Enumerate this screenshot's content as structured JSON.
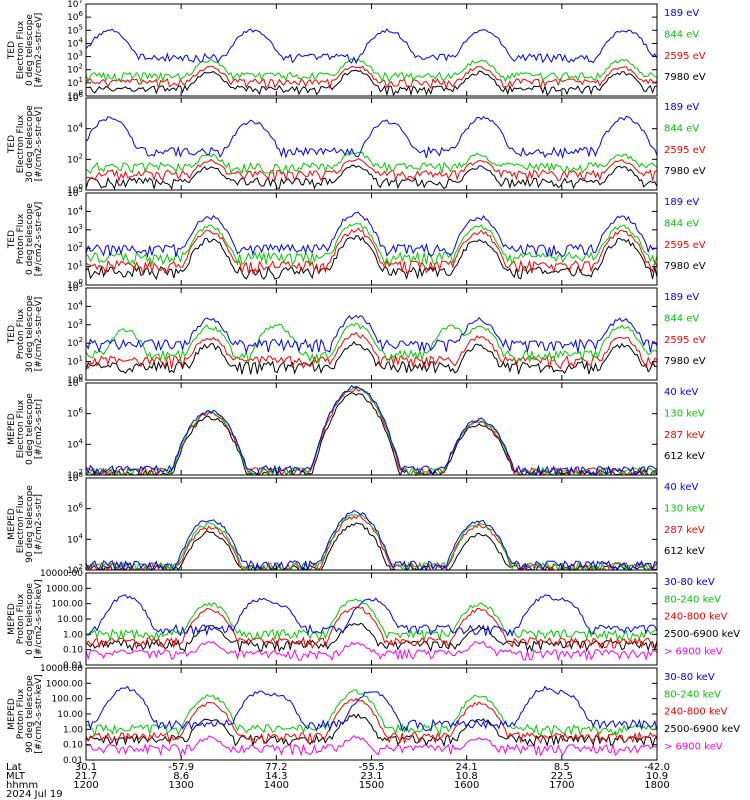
{
  "colors": {
    "blue": "#0000ff",
    "red": "#ff0000",
    "green": "#00cc00",
    "black": "#000000",
    "magenta": "#ff00ff"
  },
  "x_axis": {
    "row_labels": [
      "Lat",
      "MLT",
      "hhmm"
    ],
    "date_label": "2024 Jul 19",
    "ticks": [
      {
        "lat": "30.1",
        "mlt": "21.7",
        "hhmm": "1200"
      },
      {
        "lat": "-57.9",
        "mlt": "8.6",
        "hhmm": "1300"
      },
      {
        "lat": "77.2",
        "mlt": "14.3",
        "hhmm": "1400"
      },
      {
        "lat": "-55.5",
        "mlt": "23.1",
        "hhmm": "1500"
      },
      {
        "lat": "24.1",
        "mlt": "10.8",
        "hhmm": "1600"
      },
      {
        "lat": "8.5",
        "mlt": "22.5",
        "hhmm": "1700"
      },
      {
        "lat": "-42.0",
        "mlt": "10.9",
        "hhmm": "1800"
      }
    ]
  },
  "chart_data": [
    {
      "type": "line",
      "ylabel": [
        "TED",
        "Electron Flux",
        "0 deg telescope",
        "[#/cm2-s-str-eV]"
      ],
      "yscale": "log",
      "ylim": [
        1,
        10000000
      ],
      "yticks": [
        "10^0",
        "10^1",
        "10^2",
        "10^3",
        "10^4",
        "10^5",
        "10^6",
        "10^7"
      ],
      "x_range": [
        "1200",
        "1800"
      ],
      "series": [
        {
          "name": "7980 eV",
          "color": "black",
          "baseline": 3,
          "peaks": [
            [
              1318,
              60
            ],
            [
              1450,
              80
            ],
            [
              1608,
              60
            ],
            [
              1738,
              60
            ]
          ]
        },
        {
          "name": "2595 eV",
          "color": "red",
          "baseline": 10,
          "peaks": [
            [
              1318,
              150
            ],
            [
              1450,
              200
            ],
            [
              1608,
              150
            ],
            [
              1738,
              150
            ]
          ]
        },
        {
          "name": "844 eV",
          "color": "green",
          "baseline": 30,
          "peaks": [
            [
              1318,
              500
            ],
            [
              1450,
              600
            ],
            [
              1608,
              500
            ],
            [
              1738,
              500
            ]
          ]
        },
        {
          "name": "189 eV",
          "color": "blue",
          "baseline": 800,
          "peaks": [
            [
              1215,
              100000
            ],
            [
              1345,
              100000
            ],
            [
              1470,
              100000
            ],
            [
              1610,
              100000
            ],
            [
              1740,
              100000
            ]
          ]
        }
      ]
    },
    {
      "type": "line",
      "ylabel": [
        "TED",
        "Electron Flux",
        "30 deg telescope",
        "[#/cm2-s-str-eV]"
      ],
      "yscale": "log",
      "ylim": [
        1,
        1000000
      ],
      "yticks": [
        "10^0",
        "10^2",
        "10^4",
        "10^6"
      ],
      "x_range": [
        "1200",
        "1800"
      ],
      "series": [
        {
          "name": "7980 eV",
          "color": "black",
          "baseline": 3,
          "peaks": [
            [
              1318,
              30
            ],
            [
              1450,
              40
            ],
            [
              1608,
              30
            ],
            [
              1738,
              30
            ]
          ]
        },
        {
          "name": "2595 eV",
          "color": "red",
          "baseline": 10,
          "peaks": [
            [
              1318,
              80
            ],
            [
              1450,
              100
            ],
            [
              1608,
              80
            ],
            [
              1738,
              80
            ]
          ]
        },
        {
          "name": "844 eV",
          "color": "green",
          "baseline": 30,
          "peaks": [
            [
              1318,
              200
            ],
            [
              1450,
              300
            ],
            [
              1608,
              200
            ],
            [
              1738,
              200
            ]
          ]
        },
        {
          "name": "189 eV",
          "color": "blue",
          "baseline": 300,
          "peaks": [
            [
              1215,
              50000
            ],
            [
              1345,
              30000
            ],
            [
              1470,
              30000
            ],
            [
              1610,
              50000
            ],
            [
              1740,
              50000
            ]
          ]
        }
      ]
    },
    {
      "type": "line",
      "ylabel": [
        "TED",
        "Proton Flux",
        "0 deg telescope",
        "[#/cm2-s-str-eV]"
      ],
      "yscale": "log",
      "ylim": [
        1,
        100000
      ],
      "yticks": [
        "10^0",
        "10^1",
        "10^2",
        "10^3",
        "10^4",
        "10^5"
      ],
      "x_range": [
        "1200",
        "1800"
      ],
      "series": [
        {
          "name": "7980 eV",
          "color": "black",
          "baseline": 5,
          "peaks": [
            [
              1318,
              300
            ],
            [
              1450,
              400
            ],
            [
              1608,
              300
            ],
            [
              1738,
              300
            ]
          ]
        },
        {
          "name": "2595 eV",
          "color": "red",
          "baseline": 10,
          "peaks": [
            [
              1318,
              800
            ],
            [
              1450,
              1000
            ],
            [
              1608,
              800
            ],
            [
              1738,
              800
            ]
          ]
        },
        {
          "name": "844 eV",
          "color": "green",
          "baseline": 30,
          "peaks": [
            [
              1318,
              1500
            ],
            [
              1450,
              2000
            ],
            [
              1608,
              1500
            ],
            [
              1738,
              1500
            ]
          ]
        },
        {
          "name": "189 eV",
          "color": "blue",
          "baseline": 80,
          "peaks": [
            [
              1318,
              5000
            ],
            [
              1450,
              8000
            ],
            [
              1608,
              5000
            ],
            [
              1738,
              5000
            ]
          ]
        }
      ]
    },
    {
      "type": "line",
      "ylabel": [
        "TED",
        "Proton Flux",
        "30 deg telescope",
        "[#/cm2-s-str-eV]"
      ],
      "yscale": "log",
      "ylim": [
        1,
        100000
      ],
      "yticks": [
        "10^0",
        "10^1",
        "10^2",
        "10^3",
        "10^4",
        "10^5"
      ],
      "x_range": [
        "1200",
        "1800"
      ],
      "series": [
        {
          "name": "7980 eV",
          "color": "black",
          "baseline": 5,
          "peaks": [
            [
              1318,
              80
            ],
            [
              1450,
              100
            ],
            [
              1608,
              80
            ],
            [
              1738,
              80
            ]
          ]
        },
        {
          "name": "2595 eV",
          "color": "red",
          "baseline": 10,
          "peaks": [
            [
              1318,
              200
            ],
            [
              1450,
              300
            ],
            [
              1608,
              200
            ],
            [
              1738,
              200
            ]
          ]
        },
        {
          "name": "844 eV",
          "color": "green",
          "baseline": 20,
          "peaks": [
            [
              1225,
              500
            ],
            [
              1318,
              800
            ],
            [
              1400,
              1000
            ],
            [
              1450,
              1000
            ],
            [
              1550,
              800
            ],
            [
              1608,
              800
            ],
            [
              1738,
              800
            ]
          ]
        },
        {
          "name": "189 eV",
          "color": "blue",
          "baseline": 80,
          "peaks": [
            [
              1318,
              2000
            ],
            [
              1450,
              3000
            ],
            [
              1608,
              2000
            ],
            [
              1738,
              2000
            ]
          ]
        }
      ]
    },
    {
      "type": "line",
      "ylabel": [
        "MEPED",
        "Electron Flux",
        "0 deg telescope",
        "[#/cm2-s-str]"
      ],
      "yscale": "log",
      "ylim": [
        100,
        100000000
      ],
      "yticks": [
        "10^2",
        "10^4",
        "10^6",
        "10^8"
      ],
      "x_range": [
        "1200",
        "1800"
      ],
      "series": [
        {
          "name": "612 keV",
          "color": "black",
          "baseline": 100,
          "peaks": [
            [
              1318,
              600000
            ],
            [
              1450,
              20000000
            ],
            [
              1608,
              200000
            ]
          ]
        },
        {
          "name": "287 keV",
          "color": "red",
          "baseline": 150,
          "peaks": [
            [
              1318,
              1000000
            ],
            [
              1450,
              40000000
            ],
            [
              1608,
              300000
            ]
          ]
        },
        {
          "name": "130 keV",
          "color": "green",
          "baseline": 150,
          "peaks": [
            [
              1318,
              1200000
            ],
            [
              1450,
              50000000
            ],
            [
              1608,
              350000
            ]
          ]
        },
        {
          "name": "40 keV",
          "color": "blue",
          "baseline": 200,
          "peaks": [
            [
              1318,
              1500000
            ],
            [
              1450,
              60000000
            ],
            [
              1608,
              400000
            ]
          ]
        }
      ]
    },
    {
      "type": "line",
      "ylabel": [
        "MEPED",
        "Electron Flux",
        "90 deg telescope",
        "[#/cm2-s-str]"
      ],
      "yscale": "log",
      "ylim": [
        100,
        100000000
      ],
      "yticks": [
        "10^2",
        "10^4",
        "10^6",
        "10^8"
      ],
      "x_range": [
        "1200",
        "1800"
      ],
      "series": [
        {
          "name": "612 keV",
          "color": "black",
          "baseline": 100,
          "peaks": [
            [
              1318,
              30000
            ],
            [
              1450,
              100000
            ],
            [
              1608,
              20000
            ]
          ]
        },
        {
          "name": "287 keV",
          "color": "red",
          "baseline": 150,
          "peaks": [
            [
              1318,
              60000
            ],
            [
              1450,
              300000
            ],
            [
              1608,
              80000
            ]
          ]
        },
        {
          "name": "130 keV",
          "color": "green",
          "baseline": 150,
          "peaks": [
            [
              1318,
              100000
            ],
            [
              1450,
              400000
            ],
            [
              1608,
              100000
            ]
          ]
        },
        {
          "name": "40 keV",
          "color": "blue",
          "baseline": 200,
          "peaks": [
            [
              1318,
              200000
            ],
            [
              1450,
              600000
            ],
            [
              1608,
              150000
            ]
          ]
        }
      ]
    },
    {
      "type": "line",
      "ylabel": [
        "MEPED",
        "Proton Flux",
        "0 deg telescope",
        "[#/cm2-s-str-keV]"
      ],
      "yscale": "log",
      "ylim": [
        0.01,
        10000
      ],
      "yticks": [
        "10000.00",
        "1000.00",
        "100.00",
        "10.00",
        "1.00",
        "0.10",
        "0.01"
      ],
      "x_range": [
        "1200",
        "1800"
      ],
      "series": [
        {
          "name": "> 6900 keV",
          "color": "magenta",
          "baseline": 0.05,
          "peaks": [
            [
              1318,
              0.3
            ],
            [
              1450,
              0.3
            ],
            [
              1608,
              0.3
            ]
          ]
        },
        {
          "name": "2500-6900 keV",
          "color": "black",
          "baseline": 0.2,
          "peaks": [
            [
              1318,
              3
            ],
            [
              1450,
              5
            ],
            [
              1608,
              3
            ]
          ]
        },
        {
          "name": "240-800 keV",
          "color": "red",
          "baseline": 0.3,
          "peaks": [
            [
              1318,
              40
            ],
            [
              1450,
              60
            ],
            [
              1608,
              40
            ]
          ]
        },
        {
          "name": "80-240 keV",
          "color": "green",
          "baseline": 1,
          "peaks": [
            [
              1318,
              100
            ],
            [
              1450,
              200
            ],
            [
              1608,
              100
            ]
          ]
        },
        {
          "name": "30-80 keV",
          "color": "blue",
          "baseline": 2,
          "peaks": [
            [
              1225,
              300
            ],
            [
              1350,
              200
            ],
            [
              1400,
              100
            ],
            [
              1500,
              200
            ],
            [
              1650,
              300
            ],
            [
              1700,
              200
            ]
          ]
        }
      ]
    },
    {
      "type": "line",
      "ylabel": [
        "MEPED",
        "Proton Flux",
        "90 deg telescope",
        "[#/cm2-s-str-keV]"
      ],
      "yscale": "log",
      "ylim": [
        0.01,
        10000
      ],
      "yticks": [
        "10000.00",
        "1000.00",
        "100.00",
        "10.00",
        "1.00",
        "0.10",
        "0.01"
      ],
      "x_range": [
        "1200",
        "1800"
      ],
      "series": [
        {
          "name": "> 6900 keV",
          "color": "magenta",
          "baseline": 0.05,
          "peaks": [
            [
              1318,
              0.3
            ],
            [
              1450,
              0.3
            ],
            [
              1608,
              0.3
            ]
          ]
        },
        {
          "name": "2500-6900 keV",
          "color": "black",
          "baseline": 0.2,
          "peaks": [
            [
              1318,
              5
            ],
            [
              1450,
              8
            ],
            [
              1608,
              5
            ]
          ]
        },
        {
          "name": "240-800 keV",
          "color": "red",
          "baseline": 0.3,
          "peaks": [
            [
              1318,
              50
            ],
            [
              1450,
              80
            ],
            [
              1608,
              50
            ]
          ]
        },
        {
          "name": "80-240 keV",
          "color": "green",
          "baseline": 1,
          "peaks": [
            [
              1318,
              150
            ],
            [
              1450,
              300
            ],
            [
              1608,
              150
            ]
          ]
        },
        {
          "name": "30-80 keV",
          "color": "blue",
          "baseline": 2,
          "peaks": [
            [
              1225,
              500
            ],
            [
              1350,
              300
            ],
            [
              1400,
              200
            ],
            [
              1500,
              300
            ],
            [
              1650,
              500
            ],
            [
              1700,
              300
            ]
          ]
        }
      ]
    }
  ]
}
